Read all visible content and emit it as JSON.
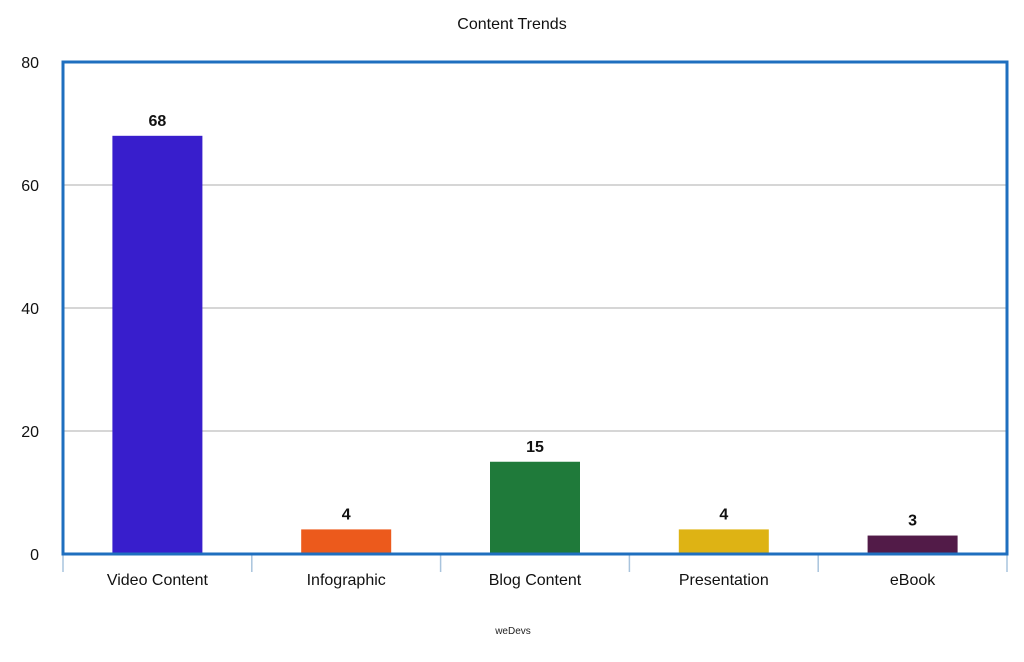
{
  "chart_data": {
    "type": "bar",
    "title": "Content Trends",
    "xlabel": "",
    "ylabel": "",
    "categories": [
      "Video Content",
      "Infographic",
      "Blog Content",
      "Presentation",
      "eBook"
    ],
    "values": [
      68,
      4,
      15,
      4,
      3
    ],
    "data_labels": [
      "68",
      "4",
      "15",
      "4",
      "3"
    ],
    "bar_colors": [
      "#381ecc",
      "#ec5a1c",
      "#1f7a3a",
      "#deb314",
      "#521b48"
    ],
    "ylim": [
      0,
      80
    ],
    "yticks": [
      0,
      20,
      40,
      60,
      80
    ],
    "ytick_labels": [
      "0",
      "20",
      "40",
      "60",
      "80"
    ],
    "grid": true,
    "legend": "none",
    "source": "weDevs",
    "colors": {
      "frame": "#1f6fbf",
      "grid": "#bdbdbd",
      "axis_ticks": "#a9c4dd"
    }
  }
}
